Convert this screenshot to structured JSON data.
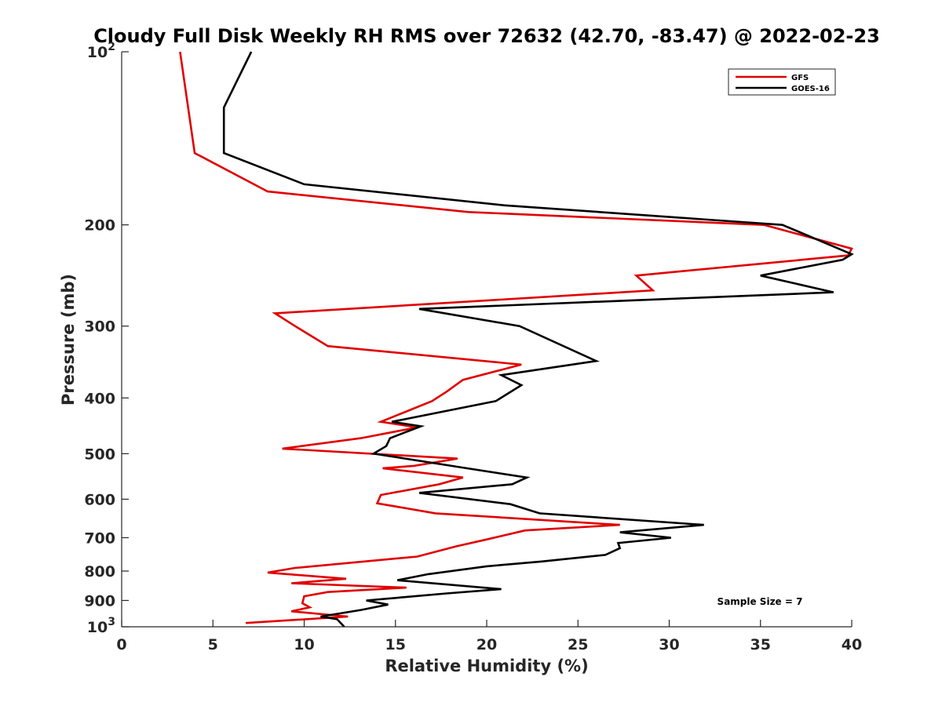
{
  "chart_data": {
    "type": "line",
    "title": "Cloudy Full Disk Weekly RH RMS over 72632 (42.70, -83.47) @ 2022-02-23",
    "xlabel": "Relative Humidity (%)",
    "ylabel": "Pressure (mb)",
    "xlim": [
      0,
      40
    ],
    "ylim": [
      100,
      1000
    ],
    "y_scale": "log",
    "y_reversed": true,
    "x_ticks": [
      "0",
      "5",
      "10",
      "15",
      "20",
      "25",
      "30",
      "35",
      "40"
    ],
    "y_ticks": [
      {
        "value": 100,
        "base": "10",
        "exp": "2"
      },
      {
        "value": 200,
        "label": "200"
      },
      {
        "value": 300,
        "label": "300"
      },
      {
        "value": 400,
        "label": "400"
      },
      {
        "value": 500,
        "label": "500"
      },
      {
        "value": 600,
        "label": "600"
      },
      {
        "value": 700,
        "label": "700"
      },
      {
        "value": 800,
        "label": "800"
      },
      {
        "value": 900,
        "label": "900"
      },
      {
        "value": 1000,
        "base": "10",
        "exp": "3"
      }
    ],
    "legend_position": "top-right",
    "grid": false,
    "annotation": "Sample Size = 7",
    "series": [
      {
        "name": "GFS",
        "color": "#e00000",
        "points": [
          [
            3.2,
            100
          ],
          [
            4.0,
            150
          ],
          [
            8.0,
            175
          ],
          [
            19.0,
            190
          ],
          [
            35.2,
            200
          ],
          [
            40.0,
            220
          ],
          [
            39.8,
            226
          ],
          [
            28.2,
            245
          ],
          [
            29.1,
            260
          ],
          [
            8.4,
            285
          ],
          [
            9.5,
            300
          ],
          [
            11.3,
            325
          ],
          [
            21.9,
            350
          ],
          [
            18.7,
            372
          ],
          [
            17.8,
            390
          ],
          [
            17.0,
            405
          ],
          [
            14.2,
            440
          ],
          [
            16.2,
            450
          ],
          [
            13.1,
            470
          ],
          [
            8.8,
            490
          ],
          [
            18.4,
            510
          ],
          [
            16.0,
            525
          ],
          [
            14.3,
            530
          ],
          [
            18.7,
            550
          ],
          [
            17.4,
            565
          ],
          [
            14.2,
            590
          ],
          [
            14.0,
            610
          ],
          [
            17.2,
            635
          ],
          [
            27.3,
            665
          ],
          [
            22.1,
            680
          ],
          [
            20.0,
            705
          ],
          [
            18.3,
            725
          ],
          [
            16.2,
            755
          ],
          [
            9.5,
            790
          ],
          [
            8.0,
            805
          ],
          [
            12.3,
            825
          ],
          [
            9.3,
            840
          ],
          [
            15.6,
            855
          ],
          [
            11.3,
            870
          ],
          [
            10.0,
            885
          ],
          [
            9.9,
            910
          ],
          [
            10.3,
            925
          ],
          [
            9.3,
            940
          ],
          [
            12.4,
            960
          ],
          [
            6.8,
            985
          ]
        ]
      },
      {
        "name": "GOES-16",
        "color": "#000000",
        "points": [
          [
            7.1,
            100
          ],
          [
            5.6,
            125
          ],
          [
            5.6,
            150
          ],
          [
            10.0,
            170
          ],
          [
            21.0,
            185
          ],
          [
            36.2,
            200
          ],
          [
            37.0,
            205
          ],
          [
            40.0,
            225
          ],
          [
            39.5,
            230
          ],
          [
            35.0,
            245
          ],
          [
            39.0,
            262
          ],
          [
            16.3,
            280
          ],
          [
            21.8,
            300
          ],
          [
            26.0,
            345
          ],
          [
            20.8,
            365
          ],
          [
            21.9,
            380
          ],
          [
            20.5,
            405
          ],
          [
            14.8,
            440
          ],
          [
            16.4,
            448
          ],
          [
            14.7,
            470
          ],
          [
            14.5,
            485
          ],
          [
            13.8,
            500
          ],
          [
            18.9,
            530
          ],
          [
            22.2,
            550
          ],
          [
            21.4,
            565
          ],
          [
            16.3,
            585
          ],
          [
            21.3,
            612
          ],
          [
            22.9,
            635
          ],
          [
            31.9,
            665
          ],
          [
            27.3,
            685
          ],
          [
            30.1,
            700
          ],
          [
            27.2,
            715
          ],
          [
            27.3,
            730
          ],
          [
            26.5,
            750
          ],
          [
            23.0,
            770
          ],
          [
            20.0,
            785
          ],
          [
            16.8,
            810
          ],
          [
            15.1,
            830
          ],
          [
            20.8,
            860
          ],
          [
            17.8,
            875
          ],
          [
            13.4,
            900
          ],
          [
            14.6,
            915
          ],
          [
            13.1,
            935
          ],
          [
            10.9,
            960
          ],
          [
            11.8,
            970
          ],
          [
            12.2,
            1000
          ]
        ]
      }
    ]
  }
}
